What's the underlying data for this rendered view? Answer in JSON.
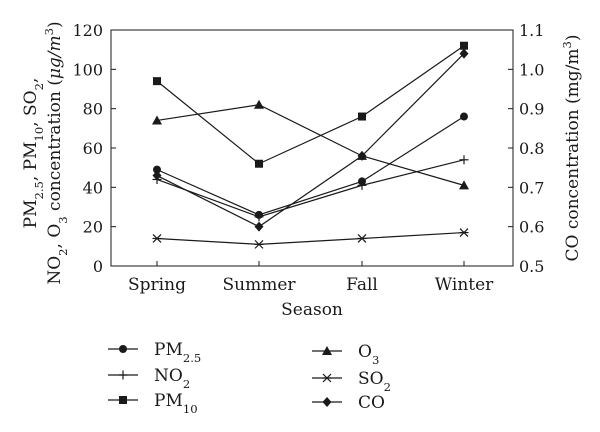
{
  "chart_data": {
    "type": "line",
    "categories": [
      "Spring",
      "Summer",
      "Fall",
      "Winter"
    ],
    "xlabel": "Season",
    "ylabel_left": {
      "line1": [
        "PM",
        "2.5",
        ", PM",
        "10",
        ", SO",
        "2",
        ","
      ],
      "line2": [
        "NO",
        "2",
        ", O",
        "3",
        " concentration (",
        "μg/m",
        "3",
        ")"
      ]
    },
    "ylabel_right": [
      "CO concentration (mg/m",
      "3",
      ")"
    ],
    "ylim_left": [
      0,
      120
    ],
    "yticks_left": [
      0,
      20,
      40,
      60,
      80,
      100,
      120
    ],
    "ylim_right": [
      0.5,
      1.1
    ],
    "yticks_right": [
      "0.5",
      "0.6",
      "0.7",
      "0.8",
      "0.9",
      "1.0",
      "1.1"
    ],
    "grid": false,
    "legend_position": "bottom",
    "series": [
      {
        "key": "pm25",
        "name": "PM",
        "sub": "2.5",
        "marker": "circle",
        "axis": "left",
        "values": [
          49,
          26,
          43,
          76
        ]
      },
      {
        "key": "no2",
        "name": "NO",
        "sub": "2",
        "marker": "plus",
        "axis": "left",
        "values": [
          44,
          25,
          41,
          54
        ]
      },
      {
        "key": "pm10",
        "name": "PM",
        "sub": "10",
        "marker": "square",
        "axis": "left",
        "values": [
          94,
          52,
          76,
          112
        ]
      },
      {
        "key": "o3",
        "name": "O",
        "sub": "3",
        "marker": "triangle",
        "axis": "left",
        "values": [
          74,
          82,
          56,
          41
        ]
      },
      {
        "key": "so2",
        "name": "SO",
        "sub": "2",
        "marker": "star",
        "axis": "left",
        "values": [
          14,
          11,
          14,
          17
        ]
      },
      {
        "key": "co",
        "name": "CO",
        "sub": "",
        "marker": "diamond",
        "axis": "right",
        "values": [
          0.73,
          0.6,
          0.78,
          1.04
        ]
      }
    ]
  }
}
